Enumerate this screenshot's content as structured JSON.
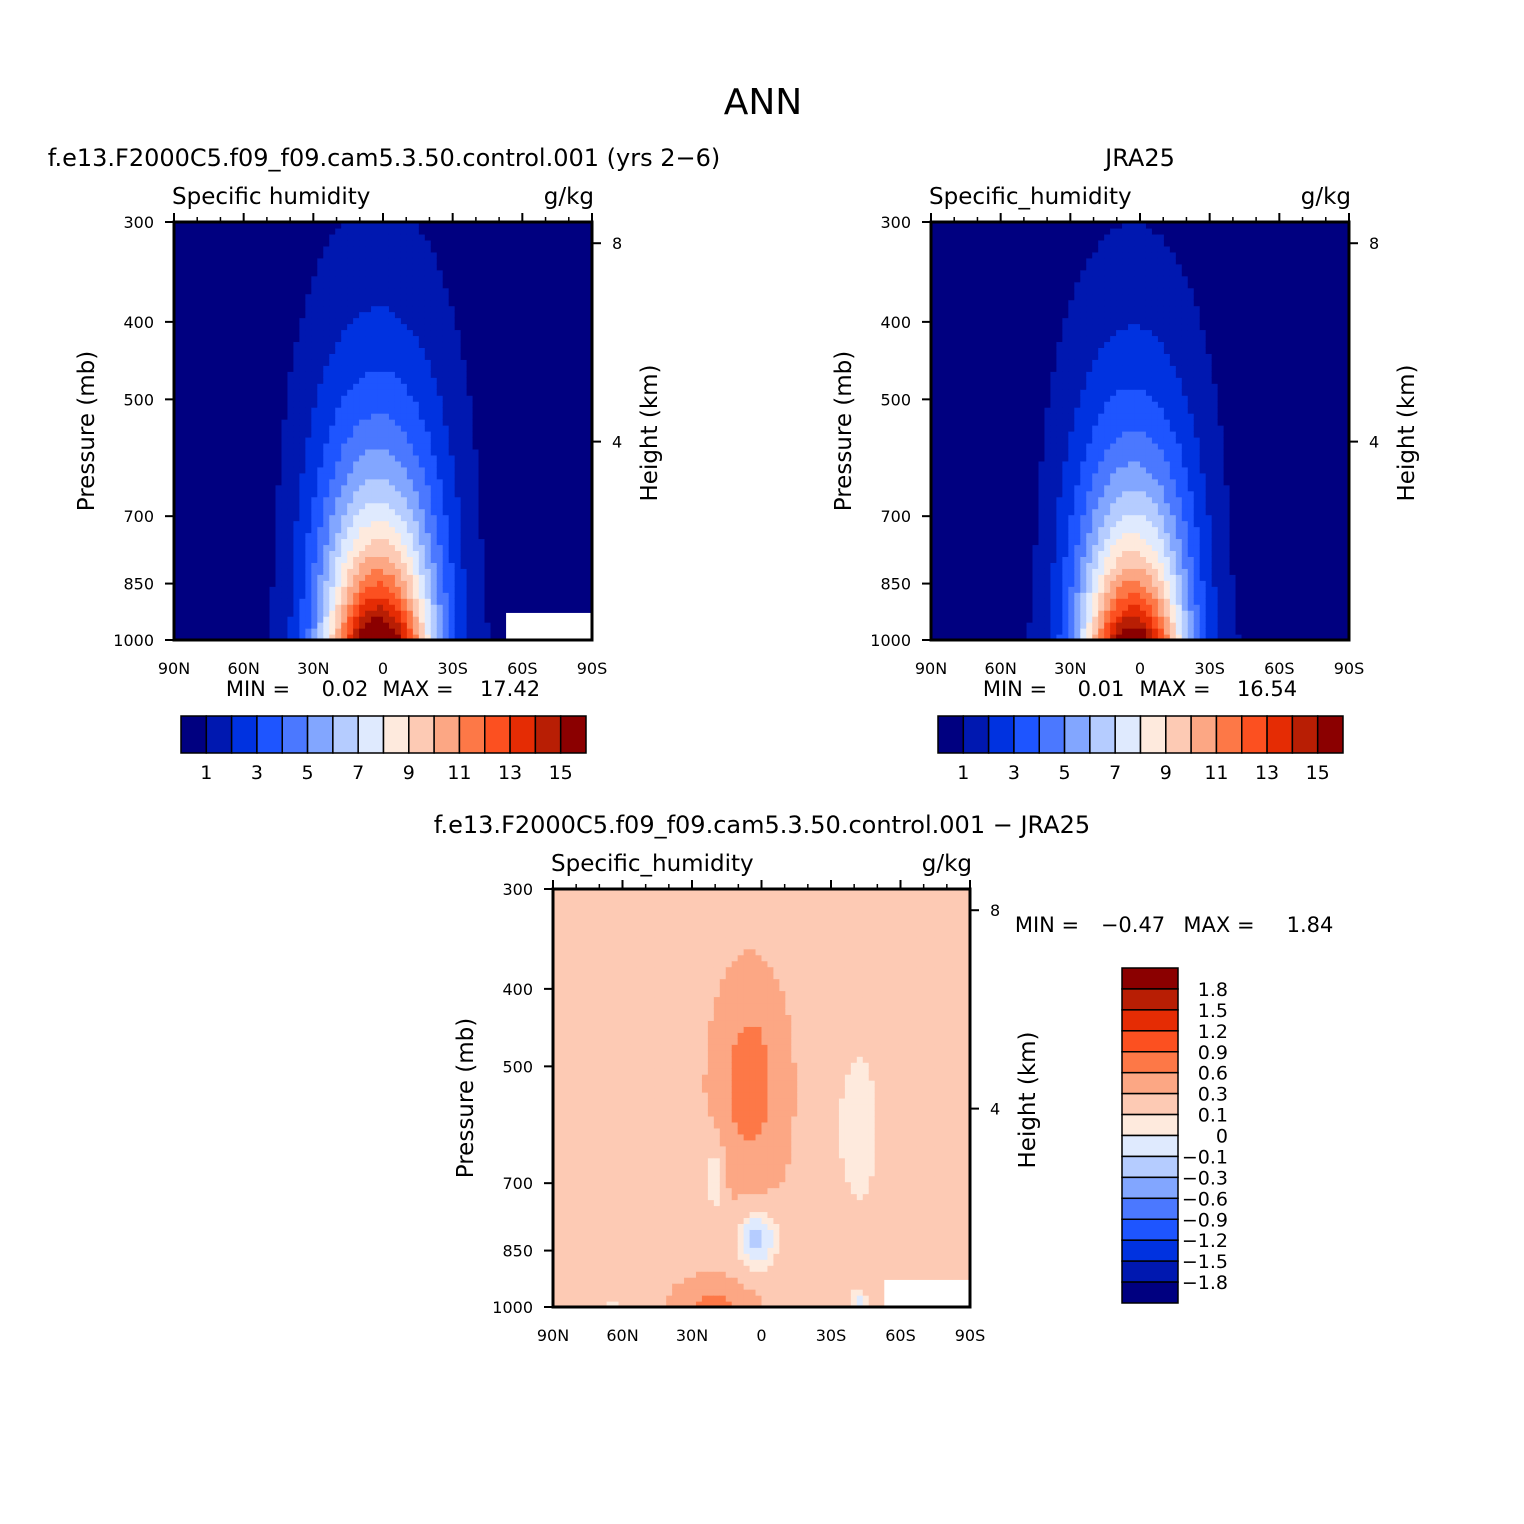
{
  "figure": {
    "title": "ANN"
  },
  "colors": {
    "abs_levels": [
      "#000080",
      "#0018b0",
      "#0032e0",
      "#1e55ff",
      "#4b78ff",
      "#82a6ff",
      "#b5ccff",
      "#dfeafe",
      "#feeadd",
      "#fdcab4",
      "#fca784",
      "#fd7847",
      "#fc5020",
      "#e52c04",
      "#b81e04",
      "#8b0000"
    ],
    "diff_levels": [
      "#000080",
      "#0018b0",
      "#0032e0",
      "#1e55ff",
      "#4b78ff",
      "#82a6ff",
      "#b5ccff",
      "#dfeafe",
      "#feeadd",
      "#fdcab4",
      "#fca784",
      "#fd7847",
      "#fc5020",
      "#e52c04",
      "#b81e04",
      "#8b0000"
    ]
  },
  "chart_data": [
    {
      "type": "heatmap",
      "id": "model",
      "title": "f.e13.F2000C5.f09_f09.cam5.3.50.control.001 (yrs 2−6)",
      "left_label": "Specific humidity",
      "right_label": "g/kg",
      "ylabel": "Pressure (mb)",
      "y2label": "Height (km)",
      "x_ticks": [
        "90N",
        "60N",
        "30N",
        "0",
        "30S",
        "60S",
        "90S"
      ],
      "y_ticks": [
        "300",
        "400",
        "500",
        "700",
        "850",
        "1000"
      ],
      "y2_ticks": [
        "8",
        "4"
      ],
      "xlim": [
        90,
        -90
      ],
      "ylim": [
        1000,
        300
      ],
      "stats": {
        "min_label": "MIN =",
        "min": "0.02",
        "max_label": "MAX =",
        "max": "17.42"
      },
      "levels": [
        1,
        2,
        3,
        4,
        5,
        6,
        7,
        8,
        9,
        10,
        11,
        12,
        13,
        14,
        15
      ],
      "colorbar_labels": [
        "1",
        "3",
        "5",
        "7",
        "9",
        "11",
        "13",
        "15"
      ],
      "field": {
        "peak": 17.4,
        "lat_center": 2,
        "lat_width": 24,
        "surface_offset": 0.7,
        "scale_height": 0.62
      },
      "mask": {
        "lat_min": -90,
        "lat_max": -53,
        "p_min": 925,
        "p_max": 1000
      }
    },
    {
      "type": "heatmap",
      "id": "obs",
      "title": "JRA25",
      "left_label": "Specific_humidity",
      "right_label": "g/kg",
      "ylabel": "Pressure (mb)",
      "y2label": "Height (km)",
      "x_ticks": [
        "90N",
        "60N",
        "30N",
        "0",
        "30S",
        "60S",
        "90S"
      ],
      "y_ticks": [
        "300",
        "400",
        "500",
        "700",
        "850",
        "1000"
      ],
      "y2_ticks": [
        "8",
        "4"
      ],
      "xlim": [
        90,
        -90
      ],
      "ylim": [
        1000,
        300
      ],
      "stats": {
        "min_label": "MIN =",
        "min": "0.01",
        "max_label": "MAX =",
        "max": "16.54"
      },
      "levels": [
        1,
        2,
        3,
        4,
        5,
        6,
        7,
        8,
        9,
        10,
        11,
        12,
        13,
        14,
        15
      ],
      "colorbar_labels": [
        "1",
        "3",
        "5",
        "7",
        "9",
        "11",
        "13",
        "15"
      ],
      "field": {
        "peak": 16.5,
        "lat_center": 3,
        "lat_width": 23,
        "surface_offset": 0.7,
        "scale_height": 0.6
      }
    },
    {
      "type": "heatmap",
      "id": "diff",
      "title": "f.e13.F2000C5.f09_f09.cam5.3.50.control.001 − JRA25",
      "left_label": "Specific_humidity",
      "right_label": "g/kg",
      "ylabel": "Pressure (mb)",
      "y2label": "Height (km)",
      "x_ticks": [
        "90N",
        "60N",
        "30N",
        "0",
        "30S",
        "60S",
        "90S"
      ],
      "y_ticks": [
        "300",
        "400",
        "500",
        "700",
        "850",
        "1000"
      ],
      "y2_ticks": [
        "8",
        "4"
      ],
      "xlim": [
        90,
        -90
      ],
      "ylim": [
        1000,
        300
      ],
      "stats": {
        "min_label": "MIN =",
        "min": "−0.47",
        "max_label": "MAX =",
        "max": "1.84"
      },
      "levels": [
        -1.8,
        -1.5,
        -1.2,
        -0.9,
        -0.6,
        -0.3,
        -0.1,
        0,
        0.1,
        0.3,
        0.6,
        0.9,
        1.2,
        1.5,
        1.8
      ],
      "colorbar_labels": [
        "1.8",
        "1.5",
        "1.2",
        "0.9",
        "0.6",
        "0.3",
        "0.1",
        "0",
        "−0.1",
        "−0.3",
        "−0.6",
        "−0.9",
        "−1.2",
        "−1.5",
        "−1.8"
      ],
      "mask": {
        "lat_min": -90,
        "lat_max": -53,
        "p_min": 925,
        "p_max": 1000
      }
    }
  ]
}
